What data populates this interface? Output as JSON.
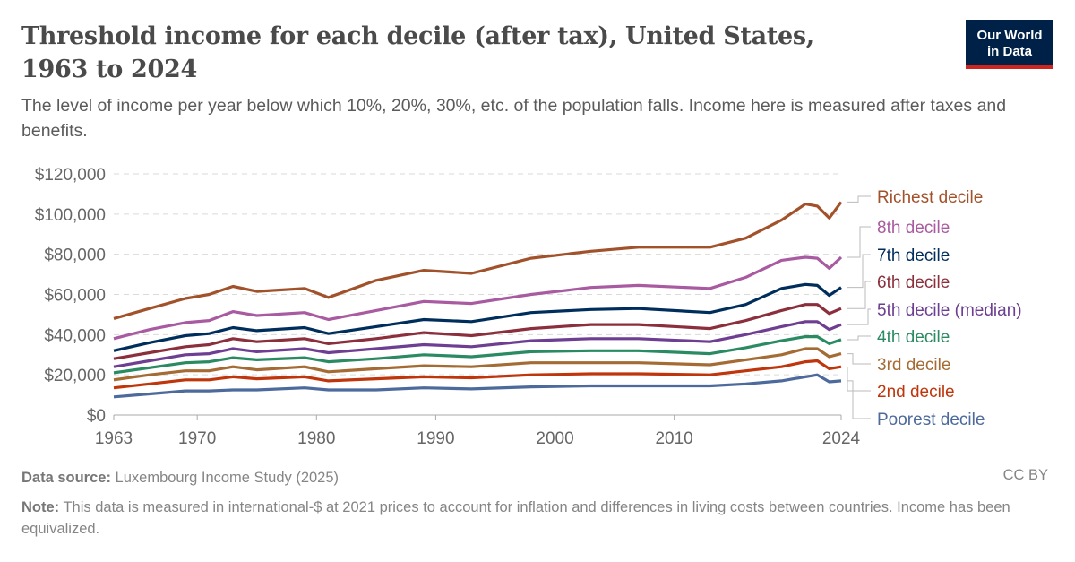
{
  "title": "Threshold income for each decile (after tax), United States, 1963 to 2024",
  "subtitle": "The level of income per year below which 10%, 20%, 30%, etc. of the population falls. Income here is measured after taxes and benefits.",
  "logo": {
    "line1": "Our World",
    "line2": "in Data",
    "bg": "#002147",
    "accent": "#ce261e"
  },
  "footer": {
    "source_label": "Data source:",
    "source": "Luxembourg Income Study (2025)",
    "license": "CC BY",
    "note_label": "Note:",
    "note": "This data is measured in international-$ at 2021 prices to account for inflation and differences in living costs between countries. Income has been equivalized."
  },
  "chart_data": {
    "type": "line",
    "xlim": [
      1963,
      2024
    ],
    "ylim": [
      0,
      120000
    ],
    "grid": "horizontal dashed",
    "legend": "right (line end labels)",
    "y_ticks": [
      0,
      20000,
      40000,
      60000,
      80000,
      100000,
      120000
    ],
    "y_tick_labels": [
      "$0",
      "$20,000",
      "$40,000",
      "$60,000",
      "$80,000",
      "$100,000",
      "$120,000"
    ],
    "x_ticks": [
      1963,
      1970,
      1980,
      1990,
      2000,
      2010,
      2024
    ],
    "x_tick_labels": [
      "1963",
      "1970",
      "1980",
      "1990",
      "2000",
      "2010",
      "2024"
    ],
    "x": [
      1963,
      1966,
      1969,
      1971,
      1973,
      1975,
      1979,
      1981,
      1985,
      1989,
      1993,
      1998,
      2003,
      2007,
      2013,
      2016,
      2019,
      2021,
      2022,
      2023,
      2024
    ],
    "series": [
      {
        "name": "Richest decile",
        "color": "#a2522b",
        "values": [
          48000,
          53000,
          58000,
          60000,
          64000,
          61500,
          63000,
          58500,
          67000,
          72000,
          70500,
          78000,
          81500,
          83500,
          83500,
          88000,
          97000,
          105000,
          104000,
          98000,
          106000
        ]
      },
      {
        "name": "8th decile",
        "color": "#a85ba0",
        "values": [
          38000,
          42500,
          46000,
          47000,
          51500,
          49500,
          51000,
          47500,
          52000,
          56500,
          55500,
          60000,
          63500,
          64500,
          63000,
          68500,
          77000,
          78500,
          78000,
          73000,
          78500
        ]
      },
      {
        "name": "7th decile",
        "color": "#002e5c",
        "values": [
          32000,
          36000,
          39500,
          40500,
          43500,
          42000,
          43500,
          40500,
          44000,
          47500,
          46500,
          51000,
          52500,
          53000,
          51000,
          55000,
          63000,
          65000,
          64500,
          59500,
          63500
        ]
      },
      {
        "name": "6th decile",
        "color": "#8c2f3c",
        "values": [
          28000,
          31000,
          34000,
          35000,
          38000,
          36500,
          38000,
          35500,
          38000,
          41000,
          39500,
          43000,
          45000,
          45000,
          43000,
          47000,
          52000,
          55000,
          55000,
          50500,
          53000
        ]
      },
      {
        "name": "5th decile (median)",
        "color": "#6d3e91",
        "values": [
          24000,
          27000,
          30000,
          30500,
          33000,
          31500,
          33000,
          31000,
          33000,
          35000,
          34000,
          37000,
          38000,
          38000,
          36500,
          40000,
          44000,
          46500,
          46500,
          42500,
          45000
        ]
      },
      {
        "name": "4th decile",
        "color": "#2a8a62",
        "values": [
          21000,
          23500,
          26000,
          26500,
          28500,
          27500,
          28500,
          26500,
          28000,
          30000,
          29000,
          31500,
          32000,
          32000,
          30500,
          33500,
          37000,
          39000,
          39000,
          35500,
          37500
        ]
      },
      {
        "name": "3rd decile",
        "color": "#a56b34",
        "values": [
          17500,
          20000,
          22000,
          22000,
          24000,
          22500,
          24000,
          21500,
          23000,
          24500,
          24000,
          26000,
          26000,
          26000,
          25000,
          27500,
          30000,
          33000,
          33000,
          29000,
          30500
        ]
      },
      {
        "name": "2nd decile",
        "color": "#c0360c",
        "values": [
          13500,
          15500,
          17500,
          17500,
          19000,
          18000,
          19000,
          17000,
          18000,
          19000,
          18500,
          20000,
          20500,
          20500,
          20000,
          22000,
          24000,
          26500,
          27000,
          23000,
          24000
        ]
      },
      {
        "name": "Poorest decile",
        "color": "#4c6a9c",
        "values": [
          9000,
          10500,
          12000,
          12000,
          12500,
          12500,
          13500,
          12500,
          12500,
          13500,
          13000,
          14000,
          14500,
          14500,
          14500,
          15500,
          17000,
          19000,
          20000,
          16500,
          17000
        ]
      }
    ]
  }
}
